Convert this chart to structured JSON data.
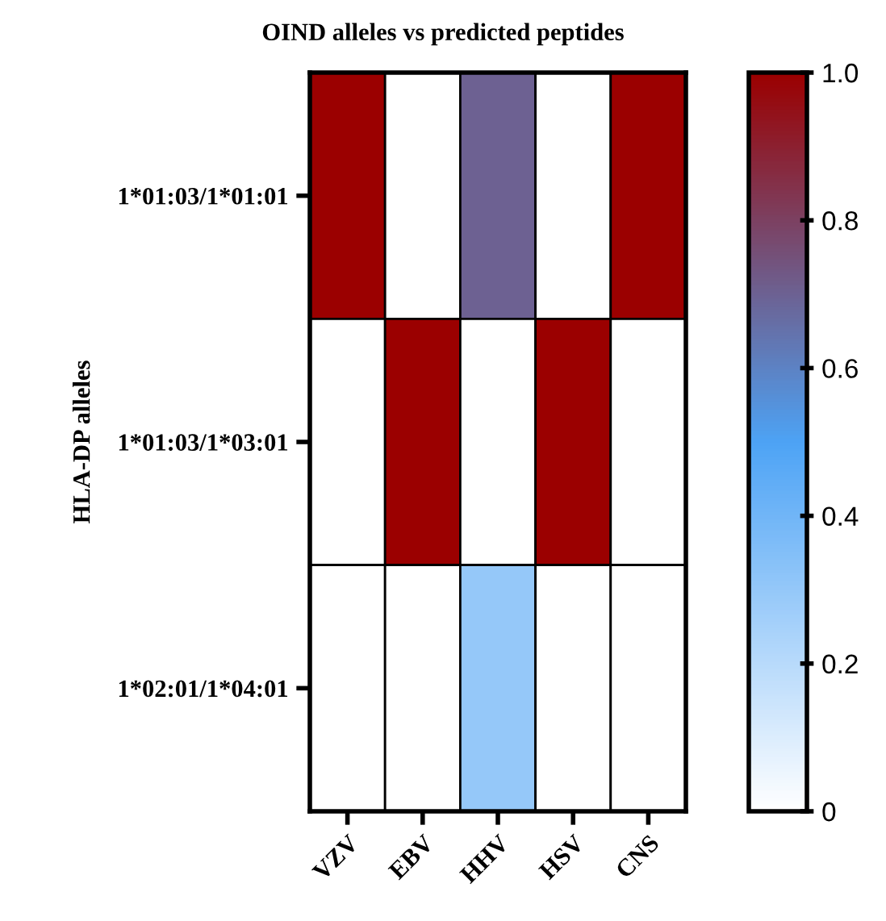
{
  "chart_data": {
    "type": "heatmap",
    "title": "OIND alleles vs predicted peptides",
    "ylabel": "HLA-DP alleles",
    "categories": [
      "VZV",
      "EBV",
      "HHV",
      "HSV",
      "CNS"
    ],
    "y_categories": [
      "1*01:03/1*01:01",
      "1*01:03/1*03:01",
      "1*02:01/1*04:01"
    ],
    "cells": [
      [
        1,
        0,
        0.7,
        0,
        1
      ],
      [
        0,
        1,
        0,
        1,
        0
      ],
      [
        0,
        0,
        0.3,
        0,
        0
      ]
    ],
    "clim": [
      0,
      1
    ],
    "cticks": [
      0,
      0.2,
      0.4,
      0.6,
      0.8,
      {
        "value": 1,
        "label": "1.0"
      }
    ]
  }
}
